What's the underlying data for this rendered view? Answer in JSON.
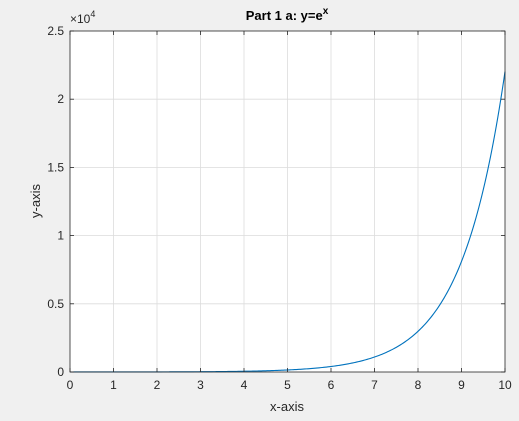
{
  "chart_data": {
    "type": "line",
    "title": {
      "base": "Part 1 a: y=e",
      "superscript": "x"
    },
    "xlabel": "x-axis",
    "ylabel": "y-axis",
    "xlim": [
      0,
      10
    ],
    "ylim": [
      0,
      25000
    ],
    "y_exponent_label": {
      "prefix": "×10",
      "exponent": "4"
    },
    "xticks": [
      0,
      1,
      2,
      3,
      4,
      5,
      6,
      7,
      8,
      9,
      10
    ],
    "xtick_labels": [
      "0",
      "1",
      "2",
      "3",
      "4",
      "5",
      "6",
      "7",
      "8",
      "9",
      "10"
    ],
    "yticks": [
      0,
      5000,
      10000,
      15000,
      20000,
      25000
    ],
    "ytick_labels": [
      "0",
      "0.5",
      "1",
      "1.5",
      "2",
      "2.5"
    ],
    "grid": true,
    "series": [
      {
        "function": "exp",
        "color": "#0072bd",
        "x": [
          0,
          0.5,
          1,
          1.5,
          2,
          2.5,
          3,
          3.5,
          4,
          4.5,
          5,
          5.5,
          6,
          6.5,
          7,
          7.5,
          8,
          8.5,
          9,
          9.25,
          9.5,
          9.75,
          10
        ],
        "y": [
          1,
          1.65,
          2.72,
          4.48,
          7.39,
          12.18,
          20.09,
          33.12,
          54.6,
          90.02,
          148.41,
          244.69,
          403.43,
          665.14,
          1096.63,
          1808.04,
          2980.96,
          4914.77,
          8103.08,
          10404.57,
          13359.73,
          17154.23,
          22026.47
        ]
      }
    ]
  },
  "colors": {
    "figure_background": "#f0f0f0",
    "axes_background": "#ffffff",
    "grid": "#dcdcdc",
    "axis_line": "#262626"
  }
}
